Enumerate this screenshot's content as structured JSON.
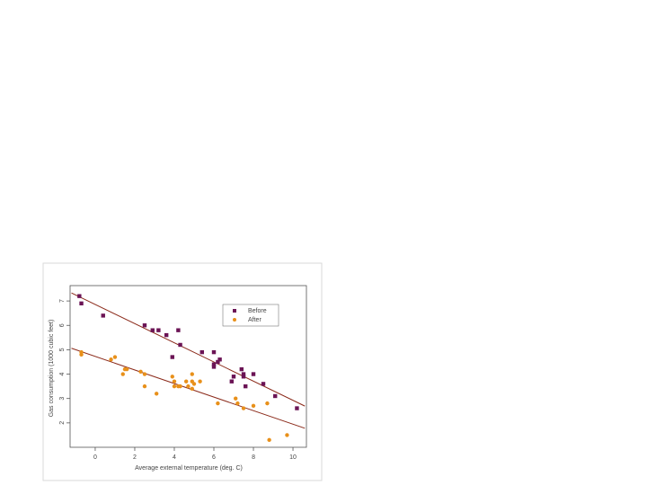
{
  "chart_data": {
    "type": "scatter",
    "x_label": "Average external temperature (deg. C)",
    "y_label": "Gas consumption (1000 cubic feet)",
    "xlim": [
      -1.27,
      10.68
    ],
    "ylim": [
      1.0,
      7.63
    ],
    "xticks": [
      0,
      2,
      4,
      6,
      8,
      10
    ],
    "yticks": [
      2,
      3,
      4,
      5,
      6,
      7
    ],
    "legend": "top-right",
    "series": [
      {
        "name": "Before",
        "color": "#6b1455",
        "marker": "square",
        "x": [
          -0.8,
          -0.7,
          0.4,
          2.5,
          2.9,
          3.2,
          3.6,
          3.9,
          4.2,
          4.3,
          5.4,
          6.0,
          6.0,
          6.0,
          6.2,
          6.3,
          6.9,
          7.0,
          7.4,
          7.5,
          7.5,
          7.6,
          8.0,
          8.5,
          9.1,
          10.2
        ],
        "values": [
          7.2,
          6.9,
          6.4,
          6.0,
          5.8,
          5.8,
          5.6,
          4.7,
          5.8,
          5.2,
          4.9,
          4.9,
          4.3,
          4.4,
          4.5,
          4.6,
          3.7,
          3.9,
          4.2,
          4.0,
          3.9,
          3.5,
          4.0,
          3.6,
          3.1,
          2.6
        ]
      },
      {
        "name": "After",
        "color": "#e8901a",
        "marker": "circle",
        "x": [
          -0.7,
          -0.7,
          0.8,
          1.0,
          1.4,
          1.5,
          1.6,
          2.3,
          2.5,
          2.5,
          3.1,
          3.9,
          4.0,
          4.0,
          4.2,
          4.3,
          4.6,
          4.7,
          4.9,
          4.9,
          4.9,
          5.0,
          5.3,
          6.2,
          7.1,
          7.2,
          7.5,
          8.0,
          8.7,
          8.8,
          9.7
        ],
        "values": [
          4.8,
          4.9,
          4.6,
          4.7,
          4.0,
          4.2,
          4.2,
          4.1,
          4.0,
          3.5,
          3.2,
          3.9,
          3.5,
          3.7,
          3.5,
          3.5,
          3.7,
          3.5,
          3.4,
          3.7,
          4.0,
          3.6,
          3.7,
          2.8,
          3.0,
          2.8,
          2.6,
          2.7,
          2.8,
          1.3,
          1.5
        ]
      }
    ],
    "fits": [
      {
        "color": "#8b2a1a",
        "x": [
          -1.2,
          10.6
        ],
        "values": [
          7.33,
          2.69
        ]
      },
      {
        "color": "#8b2a1a",
        "x": [
          -1.2,
          10.6
        ],
        "values": [
          5.06,
          1.78
        ]
      }
    ]
  }
}
